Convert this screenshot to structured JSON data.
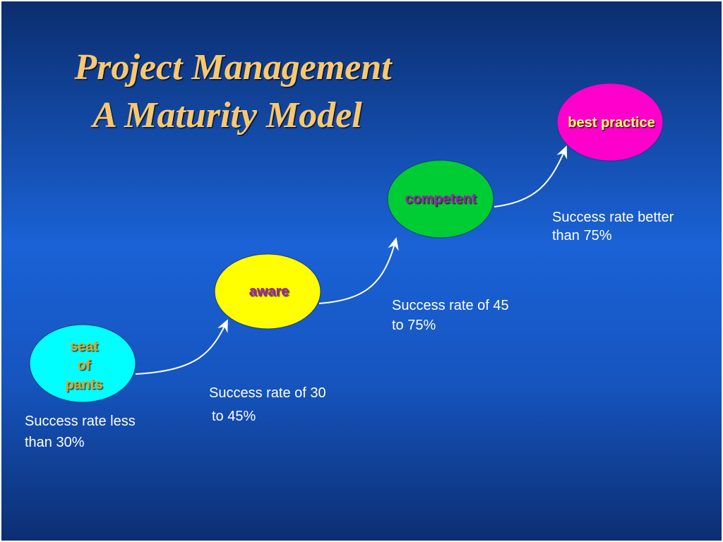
{
  "title": [
    "Project Management",
    "A Maturity Model"
  ],
  "nodes": [
    {
      "label": [
        "seat",
        "of",
        "pants"
      ],
      "caption": [
        "Success rate less",
        "than 30%"
      ]
    },
    {
      "label": [
        "aware"
      ],
      "caption": [
        "Success rate of 30",
        "to 45%"
      ]
    },
    {
      "label": [
        "competent"
      ],
      "caption": [
        "Success rate of 45",
        "to 75%"
      ]
    },
    {
      "label": [
        "best practice"
      ],
      "caption": [
        "Success rate better",
        "than 75%"
      ]
    }
  ]
}
